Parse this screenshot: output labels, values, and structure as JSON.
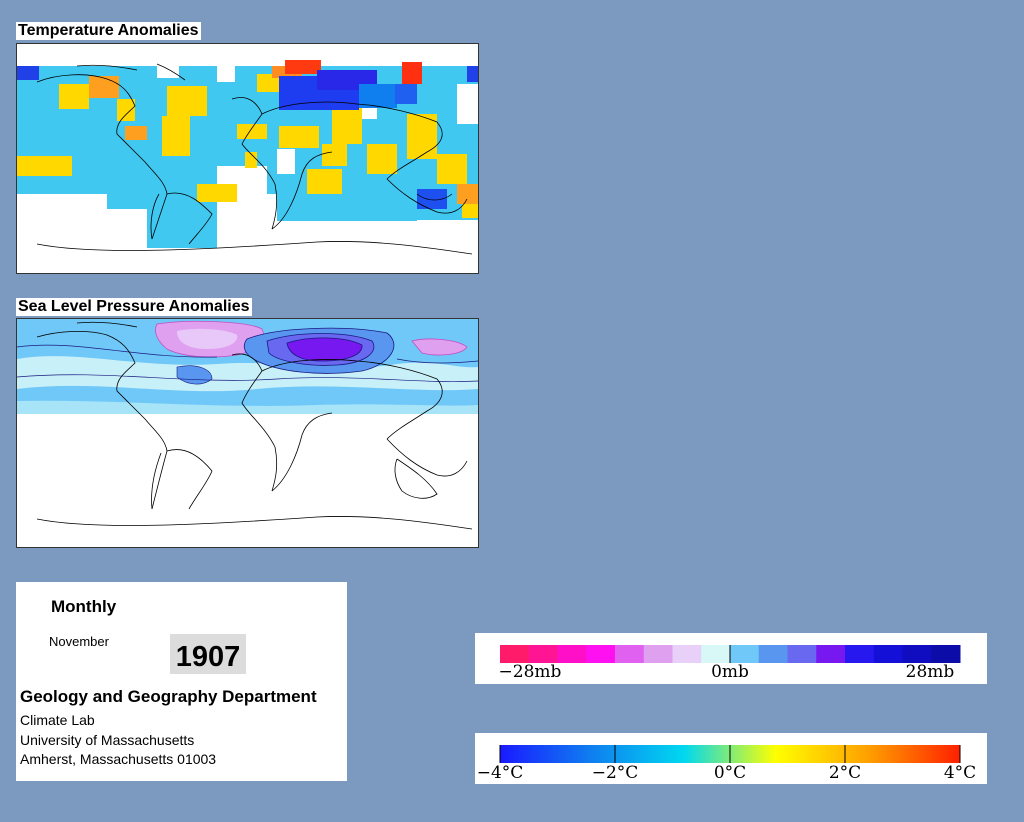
{
  "temperature_map": {
    "title": "Temperature Anomalies"
  },
  "pressure_map": {
    "title": "Sea Level Pressure Anomalies"
  },
  "info": {
    "period": "Monthly",
    "month": "November",
    "year": "1907",
    "department": "Geology and Geography Department",
    "lab": "Climate Lab",
    "university": "University of Massachusetts",
    "address": "Amherst, Massachusetts 01003"
  },
  "pressure_legend": {
    "labels": [
      "−28mb",
      "0mb",
      "28mb"
    ],
    "colors": [
      "#ff1a6a",
      "#ff1493",
      "#ff10c8",
      "#ff10f0",
      "#e060f0",
      "#e0a0f0",
      "#e8d0f8",
      "#d8f8f8",
      "#70c8f8",
      "#5896f0",
      "#6868f0",
      "#7818f0",
      "#2818f0",
      "#1410d8",
      "#100cc0",
      "#0c0ca8"
    ]
  },
  "temperature_legend": {
    "labels": [
      "−4°C",
      "−2°C",
      "0°C",
      "2°C",
      "4°C"
    ],
    "gradient": [
      "#1a1aff",
      "#0f7ff0",
      "#00d8f0",
      "#ffff00",
      "#ffa000",
      "#ff2000"
    ]
  }
}
